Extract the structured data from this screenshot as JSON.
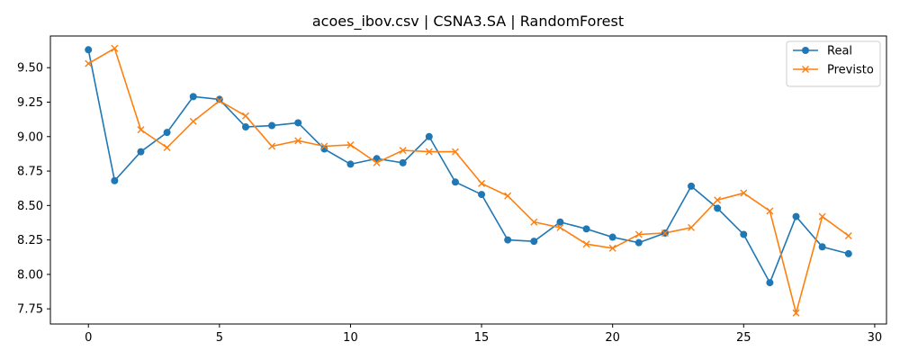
{
  "chart_data": {
    "type": "line",
    "title": "acoes_ibov.csv | CSNA3.SA | RandomForest",
    "xlabel": "",
    "ylabel": "",
    "x": [
      0,
      1,
      2,
      3,
      4,
      5,
      6,
      7,
      8,
      9,
      10,
      11,
      12,
      13,
      14,
      15,
      16,
      17,
      18,
      19,
      20,
      21,
      22,
      23,
      24,
      25,
      26,
      27,
      28,
      29
    ],
    "xlim": [
      -1.45,
      30.45
    ],
    "ylim": [
      7.64,
      9.73
    ],
    "xticks": [
      0,
      5,
      10,
      15,
      20,
      25,
      30
    ],
    "xtick_labels": [
      "0",
      "5",
      "10",
      "15",
      "20",
      "25",
      "30"
    ],
    "yticks": [
      7.75,
      8.0,
      8.25,
      8.5,
      8.75,
      9.0,
      9.25,
      9.5
    ],
    "ytick_labels": [
      "7.75",
      "8.00",
      "8.25",
      "8.50",
      "8.75",
      "9.00",
      "9.25",
      "9.50"
    ],
    "grid": false,
    "legend_position": "top-right",
    "series": [
      {
        "name": "Real",
        "color": "#1f77b4",
        "marker": "circle",
        "values": [
          9.63,
          8.68,
          8.89,
          9.03,
          9.29,
          9.27,
          9.07,
          9.08,
          9.1,
          8.91,
          8.8,
          8.84,
          8.81,
          9.0,
          8.67,
          8.58,
          8.25,
          8.24,
          8.38,
          8.33,
          8.27,
          8.23,
          8.3,
          8.64,
          8.48,
          8.29,
          7.94,
          8.42,
          8.2,
          8.15
        ]
      },
      {
        "name": "Previsto",
        "color": "#ff7f0e",
        "marker": "x",
        "values": [
          9.53,
          9.64,
          9.05,
          8.92,
          9.11,
          9.26,
          9.15,
          8.93,
          8.97,
          8.93,
          8.94,
          8.81,
          8.9,
          8.89,
          8.89,
          8.66,
          8.57,
          8.38,
          8.34,
          8.22,
          8.19,
          8.29,
          8.3,
          8.34,
          8.54,
          8.59,
          8.46,
          7.72,
          8.42,
          8.28
        ]
      }
    ]
  }
}
